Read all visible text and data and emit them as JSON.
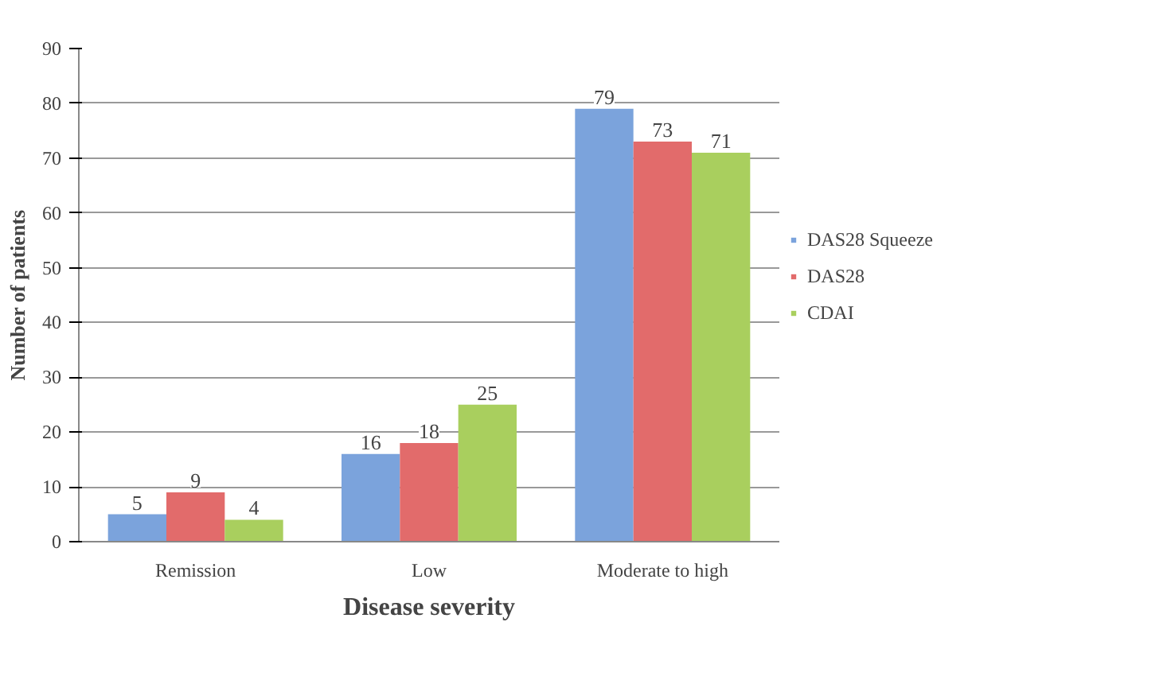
{
  "chart_data": {
    "type": "bar",
    "xlabel": "Disease severity",
    "ylabel": "Number of patients",
    "categories": [
      "Remission",
      "Low",
      "Moderate to high"
    ],
    "series": [
      {
        "name": "DAS28 Squeeze",
        "color": "#7ba3dc",
        "values": [
          5,
          16,
          79
        ]
      },
      {
        "name": "DAS28",
        "color": "#e26b6b",
        "values": [
          9,
          18,
          73
        ]
      },
      {
        "name": "CDAI",
        "color": "#a9cf5e",
        "values": [
          4,
          25,
          71
        ]
      }
    ],
    "ylim": [
      0,
      90
    ],
    "yticks": [
      0,
      10,
      20,
      30,
      40,
      50,
      60,
      70,
      80,
      90
    ],
    "grid": "y",
    "legend": "right",
    "data_labels": true
  }
}
